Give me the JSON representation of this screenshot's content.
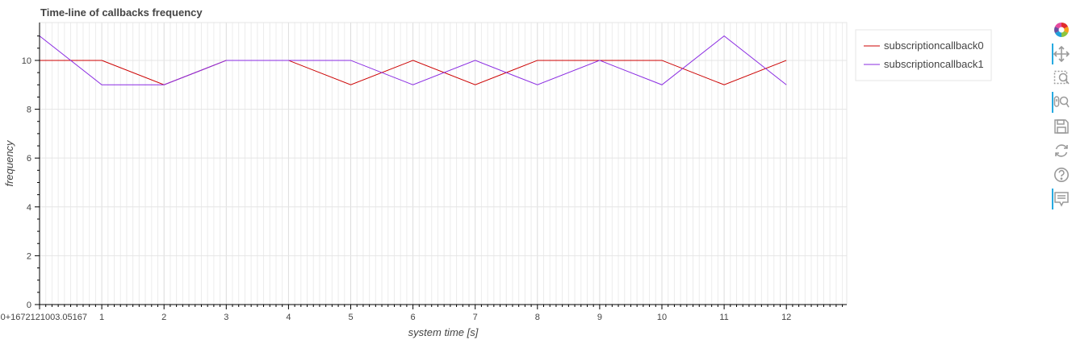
{
  "chart_data": {
    "type": "line",
    "title": "Time-line of callbacks frequency",
    "xlabel": "system time [s]",
    "ylabel": "frequency",
    "x_origin_label": "0+1672121003.05167",
    "xlim": [
      0,
      12.95
    ],
    "ylim": [
      0,
      11.55
    ],
    "x": [
      0,
      1,
      2,
      3,
      4,
      5,
      6,
      7,
      8,
      9,
      10,
      11,
      12
    ],
    "x_ticks": [
      0,
      1,
      2,
      3,
      4,
      5,
      6,
      7,
      8,
      9,
      10,
      11,
      12
    ],
    "y_ticks": [
      0,
      2,
      4,
      6,
      8,
      10
    ],
    "grid": true,
    "legend_position": "top-right",
    "series": [
      {
        "name": "subscriptioncallback0",
        "color": "#cc0000",
        "values": [
          10,
          10,
          9,
          10,
          10,
          9,
          10,
          9,
          10,
          10,
          10,
          9,
          10
        ]
      },
      {
        "name": "subscriptioncallback1",
        "color": "#8a2be2",
        "values": [
          11,
          9,
          9,
          10,
          10,
          10,
          9,
          10,
          9,
          10,
          9,
          11,
          9
        ]
      }
    ]
  },
  "toolbar": {
    "tools": [
      {
        "name": "bokeh-logo-icon",
        "active": false
      },
      {
        "name": "pan-icon",
        "active": true
      },
      {
        "name": "box-zoom-icon",
        "active": false
      },
      {
        "name": "wheel-zoom-icon",
        "active": true
      },
      {
        "name": "save-icon",
        "active": false
      },
      {
        "name": "reset-icon",
        "active": false
      },
      {
        "name": "help-icon",
        "active": false
      },
      {
        "name": "hover-icon",
        "active": true
      }
    ]
  }
}
